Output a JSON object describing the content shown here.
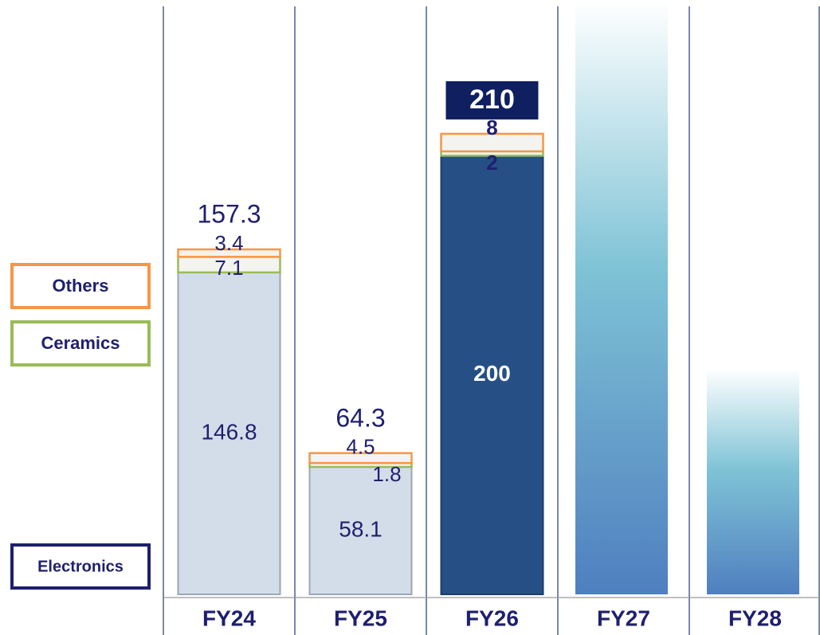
{
  "chart_data": {
    "type": "stacked_bar",
    "categories": [
      "FY24",
      "FY25",
      "FY26",
      "FY27",
      "FY28"
    ],
    "series": [
      {
        "name": "Electronics",
        "color": "#1f1f6e",
        "fills": [
          "#d3dde9",
          "#d3dde9",
          "#264f85",
          null,
          null
        ],
        "values": [
          146.8,
          58.1,
          200.0,
          null,
          null
        ]
      },
      {
        "name": "Ceramics",
        "color": "#9bbb59",
        "values": [
          7.1,
          1.8,
          2.0,
          null,
          null
        ]
      },
      {
        "name": "Others",
        "color": "#f79646",
        "values": [
          3.4,
          4.5,
          8.0,
          null,
          null
        ]
      }
    ],
    "totals": [
      157.3,
      64.3,
      210.0,
      null,
      null
    ],
    "highlight_color": "#0f1f5f",
    "ylim": [
      0,
      271
    ]
  }
}
